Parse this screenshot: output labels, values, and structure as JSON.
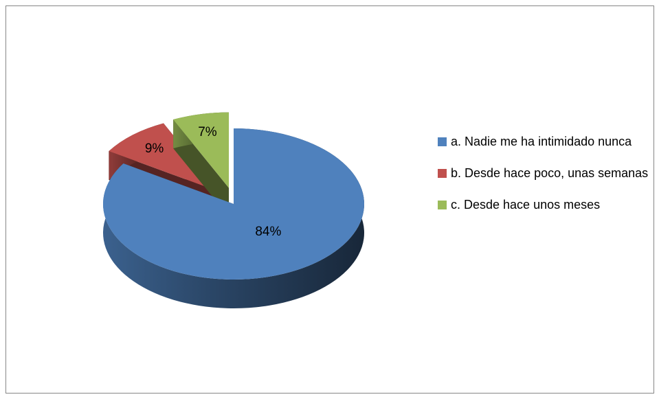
{
  "chart_data": {
    "type": "pie",
    "categories": [
      "a. Nadie me ha intimidado nunca",
      "b. Desde hace poco, unas semanas",
      "c. Desde hace unos meses"
    ],
    "values": [
      84,
      9,
      7
    ],
    "value_labels": [
      "84%",
      "9%",
      "7%"
    ],
    "colors": [
      "#4f81bd",
      "#c0504d",
      "#9bbb59"
    ],
    "legend": "right"
  }
}
